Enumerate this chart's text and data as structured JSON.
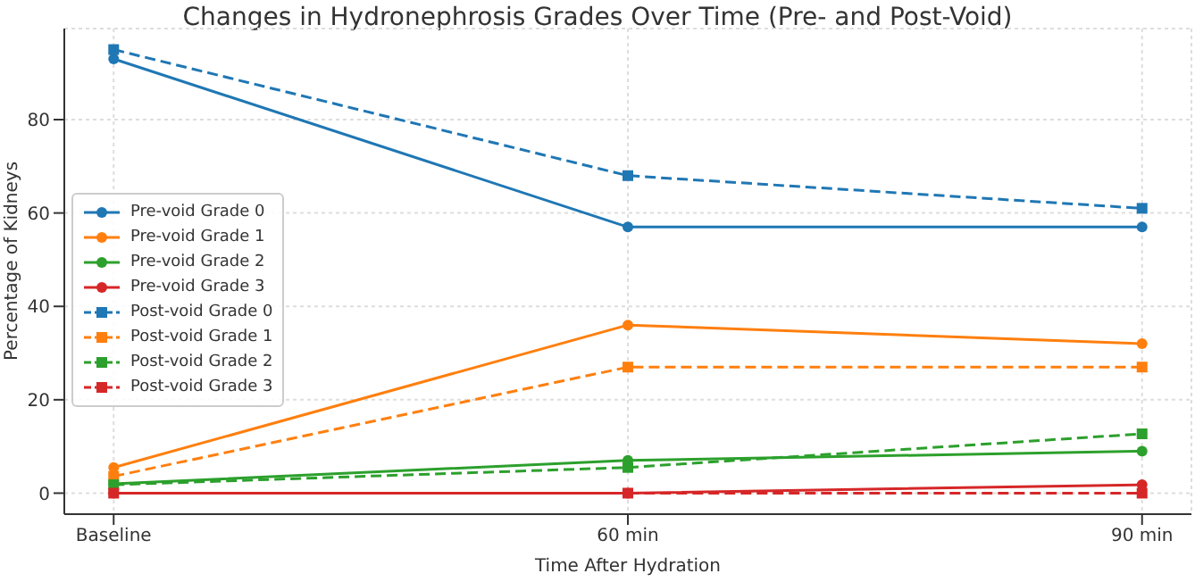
{
  "chart_data": {
    "type": "line",
    "title": "Changes in Hydronephrosis Grades Over Time (Pre- and Post-Void)",
    "xlabel": "Time After Hydration",
    "ylabel": "Percentage of Kidneys",
    "categories": [
      "Baseline",
      "60 min",
      "90 min"
    ],
    "series": [
      {
        "name": "Pre-void Grade 0",
        "color": "#1f77b4",
        "marker": "circle",
        "line_style": "solid",
        "values": [
          93,
          57,
          57
        ]
      },
      {
        "name": "Pre-void Grade 1",
        "color": "#ff7f0e",
        "marker": "circle",
        "line_style": "solid",
        "values": [
          5.5,
          36,
          32
        ]
      },
      {
        "name": "Pre-void Grade 2",
        "color": "#2ca02c",
        "marker": "circle",
        "line_style": "solid",
        "values": [
          2,
          7,
          9
        ]
      },
      {
        "name": "Pre-void Grade 3",
        "color": "#d62728",
        "marker": "circle",
        "line_style": "solid",
        "values": [
          0,
          0,
          1.8
        ]
      },
      {
        "name": "Post-void Grade 0",
        "color": "#1f77b4",
        "marker": "square",
        "line_style": "dashed",
        "values": [
          95,
          68,
          61
        ]
      },
      {
        "name": "Post-void Grade 1",
        "color": "#ff7f0e",
        "marker": "square",
        "line_style": "dashed",
        "values": [
          3.6,
          27,
          27
        ]
      },
      {
        "name": "Post-void Grade 2",
        "color": "#2ca02c",
        "marker": "square",
        "line_style": "dashed",
        "values": [
          1.8,
          5.5,
          12.7
        ]
      },
      {
        "name": "Post-void Grade 3",
        "color": "#d62728",
        "marker": "square",
        "line_style": "dashed",
        "values": [
          0,
          0,
          0
        ]
      }
    ],
    "ylim": [
      -4.5,
      99.5
    ],
    "yticks": [
      0,
      20,
      40,
      60,
      80
    ],
    "grid": true,
    "legend": "left"
  }
}
